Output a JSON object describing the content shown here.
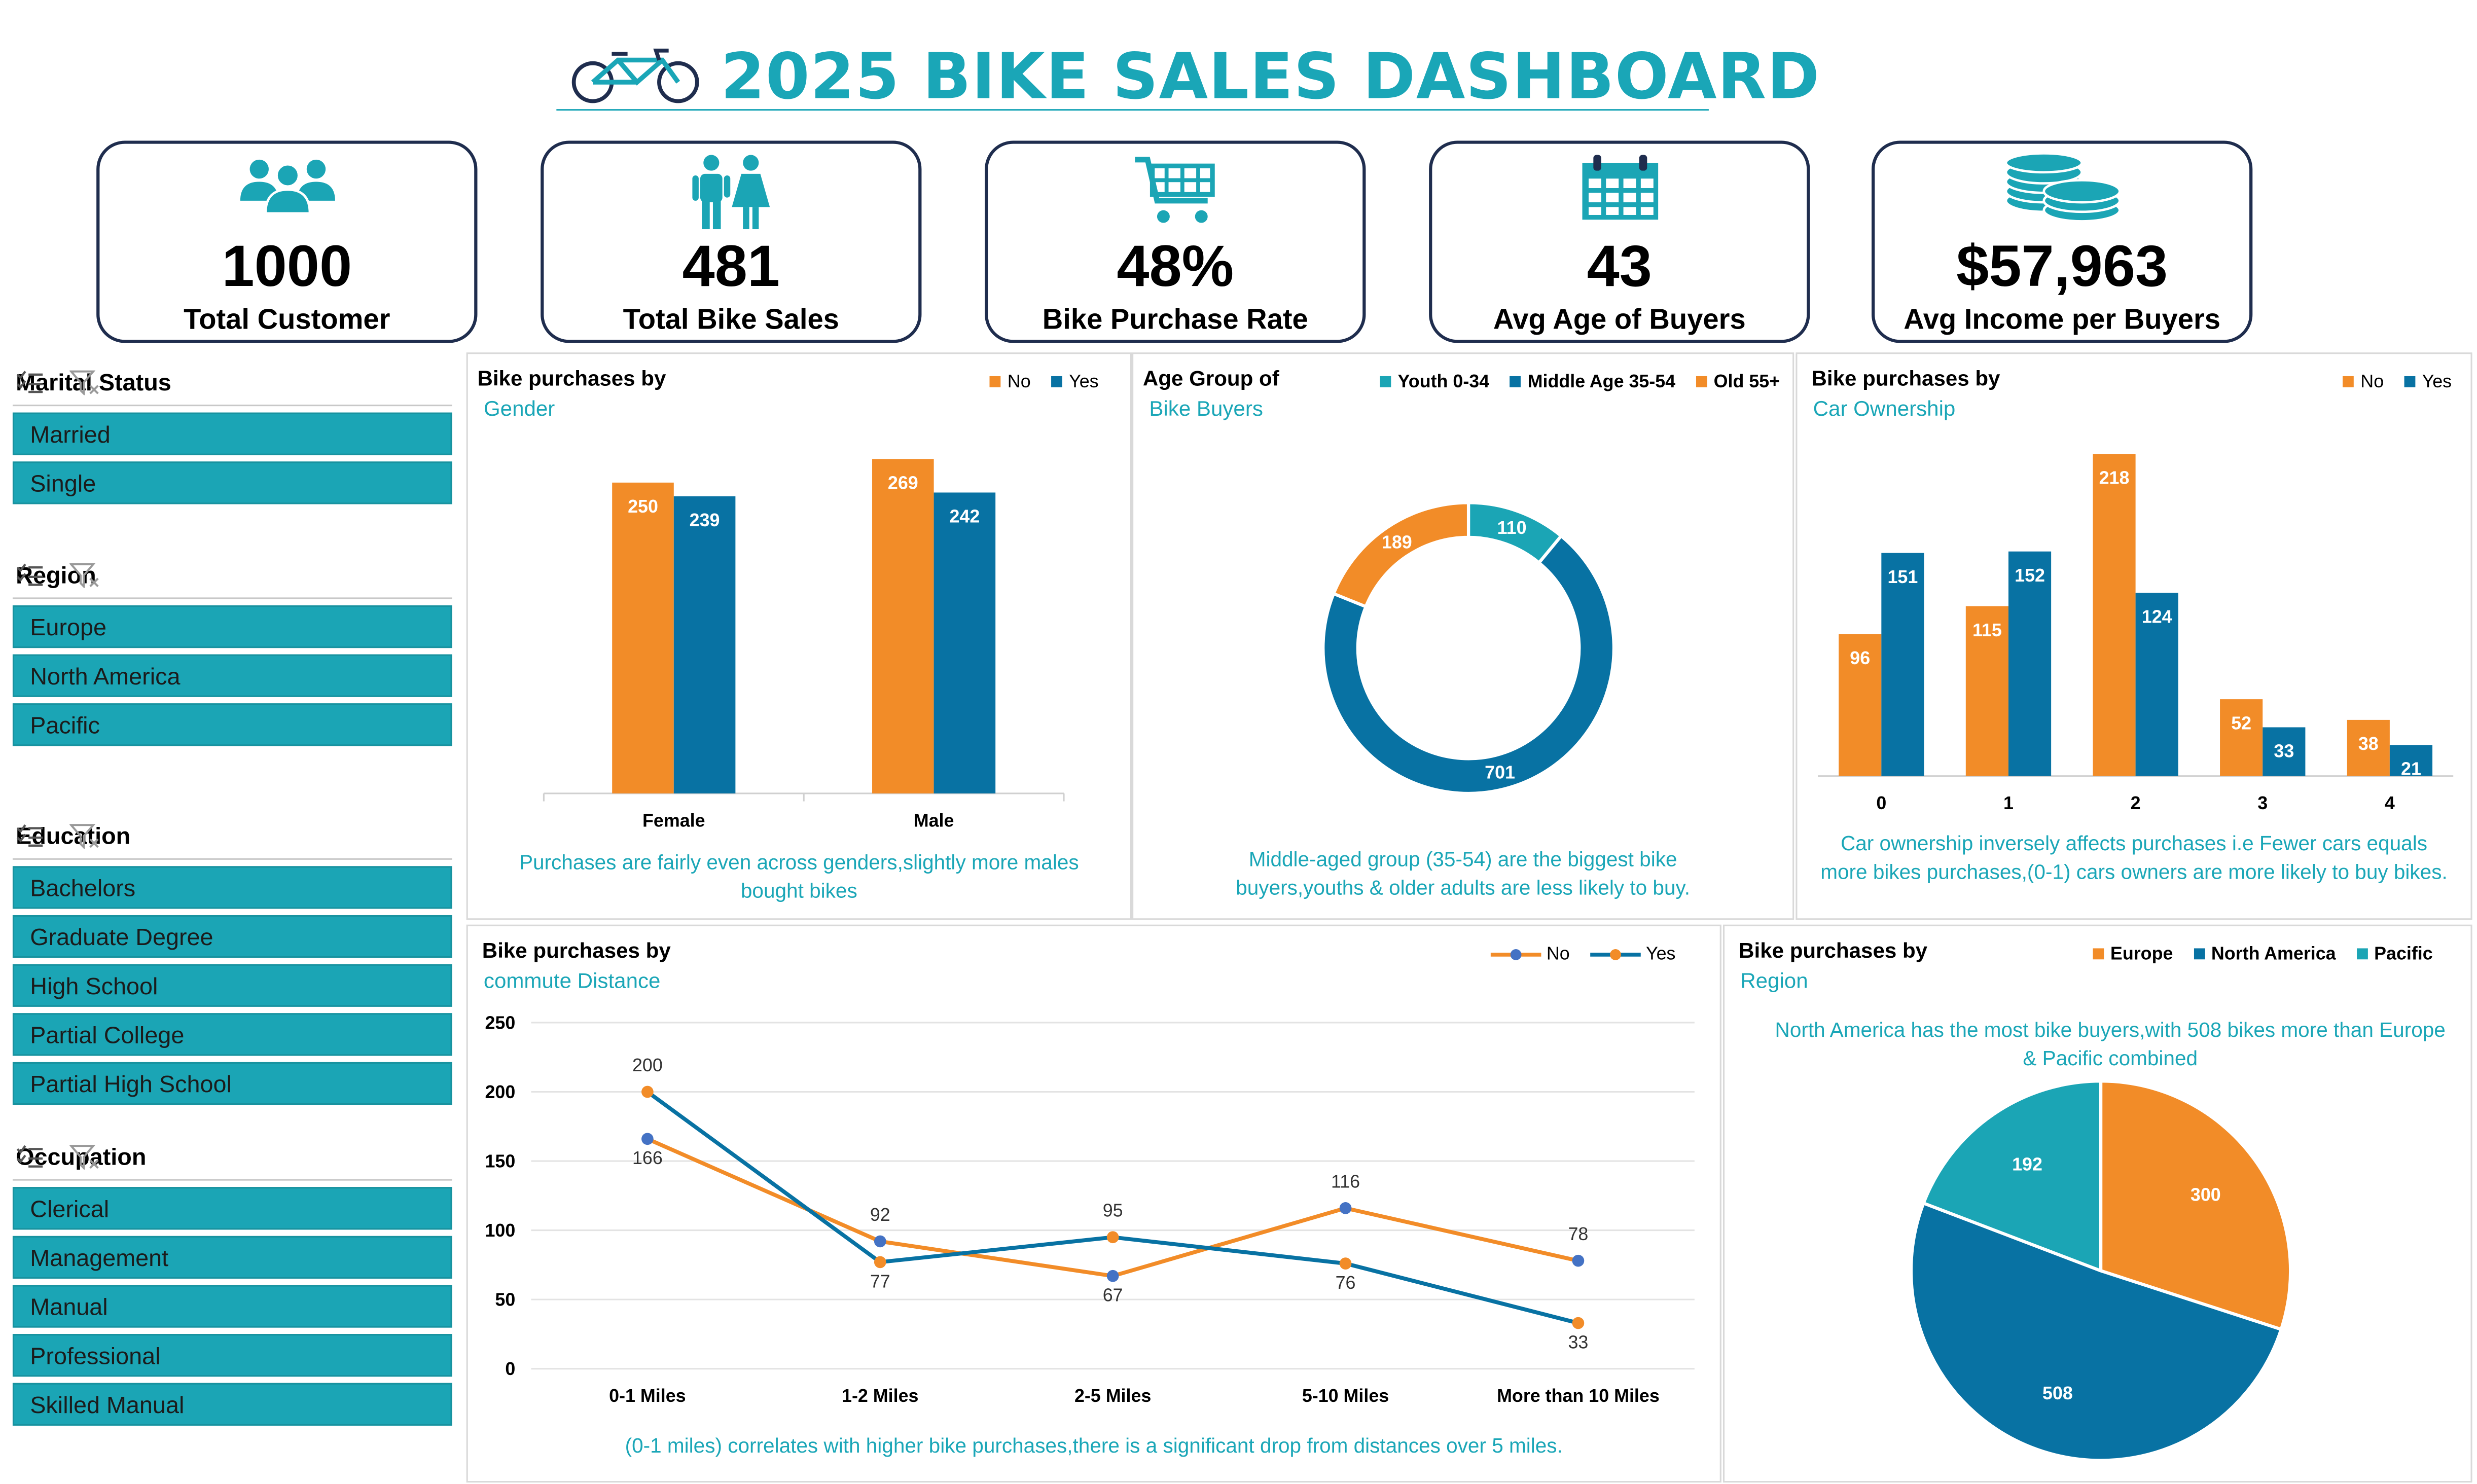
{
  "header": {
    "title": "2025 BIKE SALES DASHBOARD"
  },
  "kpis": [
    {
      "value": "1000",
      "label": "Total Customer",
      "icon": "people-group-icon"
    },
    {
      "value": "481",
      "label": "Total  Bike Sales",
      "icon": "couple-icon"
    },
    {
      "value": "48%",
      "label": "Bike Purchase Rate",
      "icon": "shopping-cart-icon"
    },
    {
      "value": "43",
      "label": "Avg Age of Buyers",
      "icon": "calendar-icon"
    },
    {
      "value": "$57,963",
      "label": "Avg Income per Buyers",
      "icon": "coins-icon"
    }
  ],
  "slicers": [
    {
      "title": "Marital Status",
      "items": [
        "Married",
        "Single"
      ]
    },
    {
      "title": "Region",
      "items": [
        "Europe",
        "North America",
        "Pacific"
      ]
    },
    {
      "title": "Education",
      "items": [
        "Bachelors",
        "Graduate Degree",
        "High School",
        "Partial College",
        "Partial High School"
      ]
    },
    {
      "title": "Occupation",
      "items": [
        "Clerical",
        "Management",
        "Manual",
        "Professional",
        "Skilled Manual"
      ]
    }
  ],
  "colors": {
    "no": "#f28c28",
    "yes": "#0872a3",
    "teal": "#1ba5b5",
    "navy": "#1f2d4e"
  },
  "chart_data": [
    {
      "id": "gender",
      "type": "bar",
      "title": "Bike purchases by",
      "subtitle": "Gender",
      "categories": [
        "Female",
        "Male"
      ],
      "series": [
        {
          "name": "No",
          "values": [
            250,
            269
          ]
        },
        {
          "name": "Yes",
          "values": [
            239,
            242
          ]
        }
      ],
      "ylim": [
        0,
        300
      ],
      "legend": "top-right",
      "note": "Purchases are fairly even across genders,slightly more males bought bikes"
    },
    {
      "id": "age",
      "type": "pie",
      "title": "Age Group of",
      "subtitle": "Bike Buyers",
      "categories": [
        "Youth 0-34",
        "Middle Age 35-54",
        "Old 55+"
      ],
      "values": [
        110,
        701,
        189
      ],
      "legend": "top",
      "note": "Middle-aged group (35-54) are the biggest bike buyers,youths & older adults are less likely to buy."
    },
    {
      "id": "cars",
      "type": "bar",
      "title": "Bike purchases by",
      "subtitle": "Car Ownership",
      "categories": [
        "0",
        "1",
        "2",
        "3",
        "4"
      ],
      "series": [
        {
          "name": "No",
          "values": [
            96,
            115,
            218,
            52,
            38
          ]
        },
        {
          "name": "Yes",
          "values": [
            151,
            152,
            124,
            33,
            21
          ]
        }
      ],
      "ylim": [
        0,
        230
      ],
      "legend": "top-right",
      "note": "Car ownership inversely affects purchases i.e Fewer cars equals more bikes purchases,(0-1) cars owners are more likely to buy bikes."
    },
    {
      "id": "commute",
      "type": "line",
      "title": "Bike purchases by",
      "subtitle": "commute Distance",
      "categories": [
        "0-1 Miles",
        "1-2 Miles",
        "2-5 Miles",
        "5-10 Miles",
        "More than 10 Miles"
      ],
      "series": [
        {
          "name": "No",
          "values": [
            166,
            92,
            67,
            116,
            78
          ]
        },
        {
          "name": "Yes",
          "values": [
            200,
            77,
            95,
            76,
            33
          ]
        }
      ],
      "yticks": [
        "0",
        "50",
        "100",
        "150",
        "200",
        "250"
      ],
      "ylim": [
        0,
        250
      ],
      "grid": true,
      "legend": "top-right",
      "note": "(0-1 miles) correlates with higher bike purchases,there is a significant drop from distances over 5 miles."
    },
    {
      "id": "region",
      "type": "pie",
      "title": "Bike purchases by",
      "subtitle": "Region",
      "categories": [
        "Europe",
        "North America",
        "Pacific"
      ],
      "values": [
        300,
        508,
        192
      ],
      "legend": "top-right",
      "note": "North America has the most  bike buyers,with 508 bikes more than Europe & Pacific combined"
    }
  ]
}
